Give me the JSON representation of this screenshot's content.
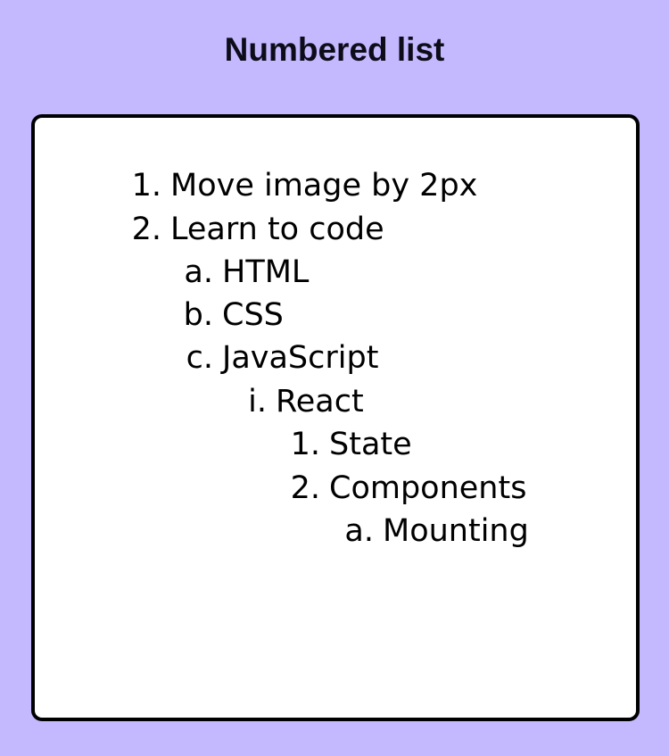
{
  "title": "Numbered list",
  "list": {
    "items": [
      {
        "marker": "1.",
        "text": "Move image by 2px",
        "level": 0
      },
      {
        "marker": "2.",
        "text": "Learn to code",
        "level": 0
      },
      {
        "marker": "a.",
        "text": "HTML",
        "level": 1
      },
      {
        "marker": "b.",
        "text": "CSS",
        "level": 1
      },
      {
        "marker": "c.",
        "text": "JavaScript",
        "level": 1
      },
      {
        "marker": "i.",
        "text": "React",
        "level": 2
      },
      {
        "marker": "1.",
        "text": "State",
        "level": 3
      },
      {
        "marker": "2.",
        "text": "Components",
        "level": 3
      },
      {
        "marker": "a.",
        "text": "Mounting",
        "level": 4
      }
    ]
  }
}
